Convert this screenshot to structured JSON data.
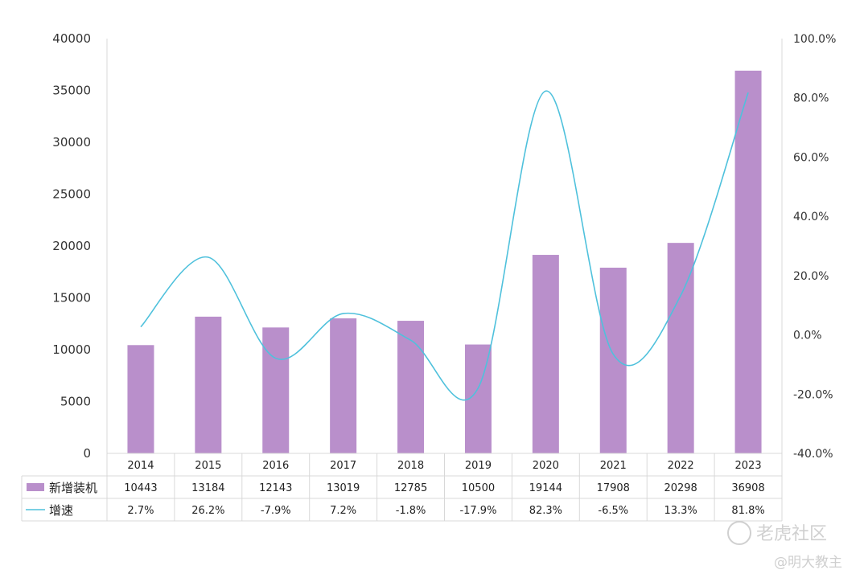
{
  "chart_data": {
    "type": "bar",
    "categories": [
      "2014",
      "2015",
      "2016",
      "2017",
      "2018",
      "2019",
      "2020",
      "2021",
      "2022",
      "2023"
    ],
    "series": [
      {
        "name": "新增装机",
        "type": "bar",
        "axis": "left",
        "values": [
          10443,
          13184,
          12143,
          13019,
          12785,
          10500,
          19144,
          17908,
          20298,
          36908
        ],
        "labels": [
          "10443",
          "13184",
          "12143",
          "13019",
          "12785",
          "10500",
          "19144",
          "17908",
          "20298",
          "36908"
        ]
      },
      {
        "name": "增速",
        "type": "line",
        "axis": "right",
        "values": [
          2.7,
          26.2,
          -7.9,
          7.2,
          -1.8,
          -17.9,
          82.3,
          -6.5,
          13.3,
          81.8
        ],
        "labels": [
          "2.7%",
          "26.2%",
          "-7.9%",
          "7.2%",
          "-1.8%",
          "-17.9%",
          "82.3%",
          "-6.5%",
          "13.3%",
          "81.8%"
        ]
      }
    ],
    "yleft": {
      "lim": [
        0,
        40000
      ],
      "ticks": [
        "0",
        "5000",
        "10000",
        "15000",
        "20000",
        "25000",
        "30000",
        "35000",
        "40000"
      ]
    },
    "yright": {
      "lim": [
        -40,
        100
      ],
      "ticks": [
        "-40.0%",
        "-20.0%",
        "0.0%",
        "20.0%",
        "40.0%",
        "60.0%",
        "80.0%",
        "100.0%"
      ]
    },
    "data_table": true,
    "colors": {
      "bar": "#b98fcb",
      "line": "#4fc1dc",
      "grid": "#d8d8d8"
    }
  },
  "watermark": {
    "text1": "老虎社区",
    "text2": "@明大教主"
  }
}
